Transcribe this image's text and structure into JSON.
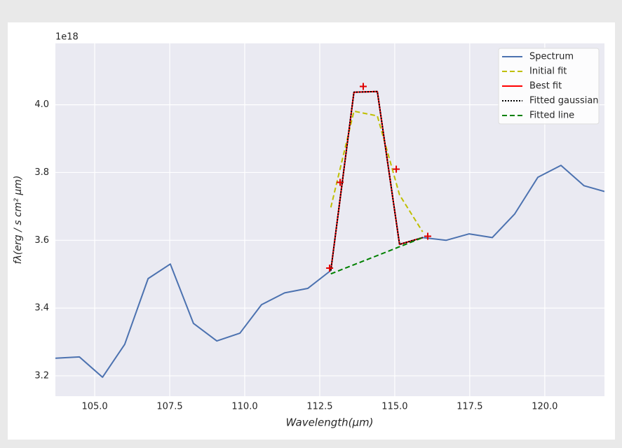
{
  "chart_data": {
    "type": "line",
    "offset_label": "1e18",
    "xlabel": "Wavelength(μm)",
    "ylabel": "fλ(erg / s cm² μm)",
    "xlim": [
      103.69,
      121.99
    ],
    "ylim": [
      3.14,
      4.181
    ],
    "xticks": [
      {
        "value": 105,
        "label": "105.0"
      },
      {
        "value": 107.5,
        "label": "107.5"
      },
      {
        "value": 110,
        "label": "110.0"
      },
      {
        "value": 112.5,
        "label": "112.5"
      },
      {
        "value": 115,
        "label": "115.0"
      },
      {
        "value": 117.5,
        "label": "117.5"
      },
      {
        "value": 120,
        "label": "120.0"
      }
    ],
    "yticks": [
      3.2,
      3.4,
      3.6,
      3.8,
      {
        "value": 4,
        "label": "4.0"
      }
    ],
    "grid": true,
    "legend": "upper right",
    "series": [
      {
        "name": "Spectrum",
        "color": "#4c72b0",
        "dash": "solid",
        "x": [
          103.69,
          104.49,
          105.26,
          106.0,
          106.78,
          107.52,
          108.29,
          109.07,
          109.84,
          110.56,
          111.33,
          112.1,
          112.87,
          113.64,
          114.42,
          115.16,
          115.93,
          116.71,
          117.48,
          118.25,
          119.0,
          119.77,
          120.54,
          121.31,
          121.99
        ],
        "values": [
          3.252,
          3.256,
          3.196,
          3.293,
          3.487,
          3.53,
          3.355,
          3.303,
          3.326,
          3.41,
          3.445,
          3.458,
          3.511,
          4.037,
          4.039,
          3.588,
          3.608,
          3.6,
          3.619,
          3.608,
          3.678,
          3.786,
          3.821,
          3.761,
          3.744
        ]
      },
      {
        "name": "Initial fit",
        "color": "#bfbf00",
        "dash": "dashed",
        "x": [
          112.87,
          113.64,
          114.42,
          115.16,
          115.93
        ],
        "values": [
          3.697,
          3.981,
          3.967,
          3.734,
          3.625
        ]
      },
      {
        "name": "Best fit",
        "color": "#ff0000",
        "dash": "solid",
        "x": [
          112.87,
          113.64,
          114.42,
          115.16,
          115.93
        ],
        "values": [
          3.511,
          4.037,
          4.039,
          3.588,
          3.608
        ]
      },
      {
        "name": "Fitted gaussian",
        "color": "#000000",
        "dash": "dotted",
        "x": [
          112.87,
          113.64,
          114.42,
          115.16,
          115.93
        ],
        "values": [
          3.511,
          4.037,
          4.039,
          3.588,
          3.608
        ]
      },
      {
        "name": "Fitted line",
        "color": "#008000",
        "dash": "dashed",
        "x": [
          112.87,
          113.64,
          114.42,
          115.16,
          115.93
        ],
        "values": [
          3.501,
          3.528,
          3.555,
          3.581,
          3.608
        ]
      }
    ],
    "markers": {
      "color": "#e00000",
      "x": [
        112.83,
        113.18,
        113.95,
        115.05,
        116.1
      ],
      "values": [
        3.518,
        3.771,
        4.054,
        3.81,
        3.612
      ]
    }
  }
}
